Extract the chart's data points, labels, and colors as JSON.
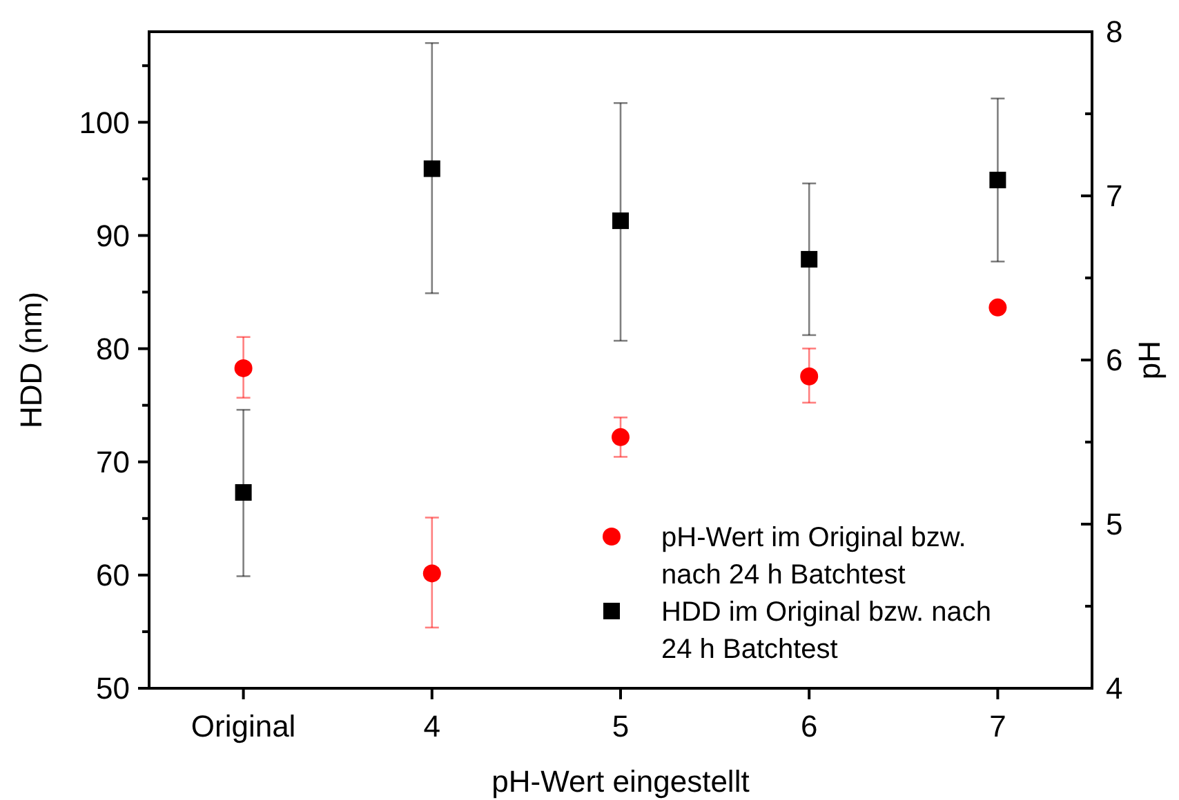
{
  "chart_data": {
    "type": "scatter",
    "xlabel": "pH-Wert eingestellt",
    "ylabel": "HDD (nm)",
    "y2label": "pH",
    "categories": [
      "Original",
      "4",
      "5",
      "6",
      "7"
    ],
    "series": [
      {
        "name": "pH-Wert im Original bzw. nach 24 h Batchtest",
        "color": "#ff0000",
        "axis": "y2",
        "marker": "circle",
        "values": [
          5.95,
          4.7,
          5.53,
          5.9,
          6.32
        ],
        "errors": [
          [
            5.77,
            6.14
          ],
          [
            4.37,
            5.04
          ],
          [
            5.41,
            5.65
          ],
          [
            5.74,
            6.07
          ],
          null
        ]
      },
      {
        "name": "HDD im Original bzw. nach 24 h Batchtest",
        "color": "#000000",
        "axis": "y",
        "marker": "square",
        "values": [
          67.3,
          95.9,
          91.3,
          87.9,
          94.9
        ],
        "errors": [
          [
            59.9,
            74.6
          ],
          [
            84.9,
            107.0
          ],
          [
            80.7,
            101.7
          ],
          [
            81.2,
            94.6
          ],
          [
            87.7,
            102.1
          ]
        ]
      }
    ],
    "ylim": [
      50,
      108
    ],
    "yticks": [
      50,
      {
        "value": 55,
        "label": null
      },
      60,
      {
        "value": 65,
        "label": null
      },
      70,
      {
        "value": 75,
        "label": null
      },
      80,
      {
        "value": 85,
        "label": null
      },
      90,
      {
        "value": 95,
        "label": null
      },
      100,
      {
        "value": 105,
        "label": null
      }
    ],
    "y2lim": [
      4,
      8
    ],
    "y2ticks": [
      4,
      {
        "value": 4.5,
        "label": null
      },
      5,
      {
        "value": 5.5,
        "label": null
      },
      6,
      {
        "value": 6.5,
        "label": null
      },
      7,
      {
        "value": 7.5,
        "label": null
      },
      8
    ],
    "legend": "bottom right",
    "grid": false
  }
}
